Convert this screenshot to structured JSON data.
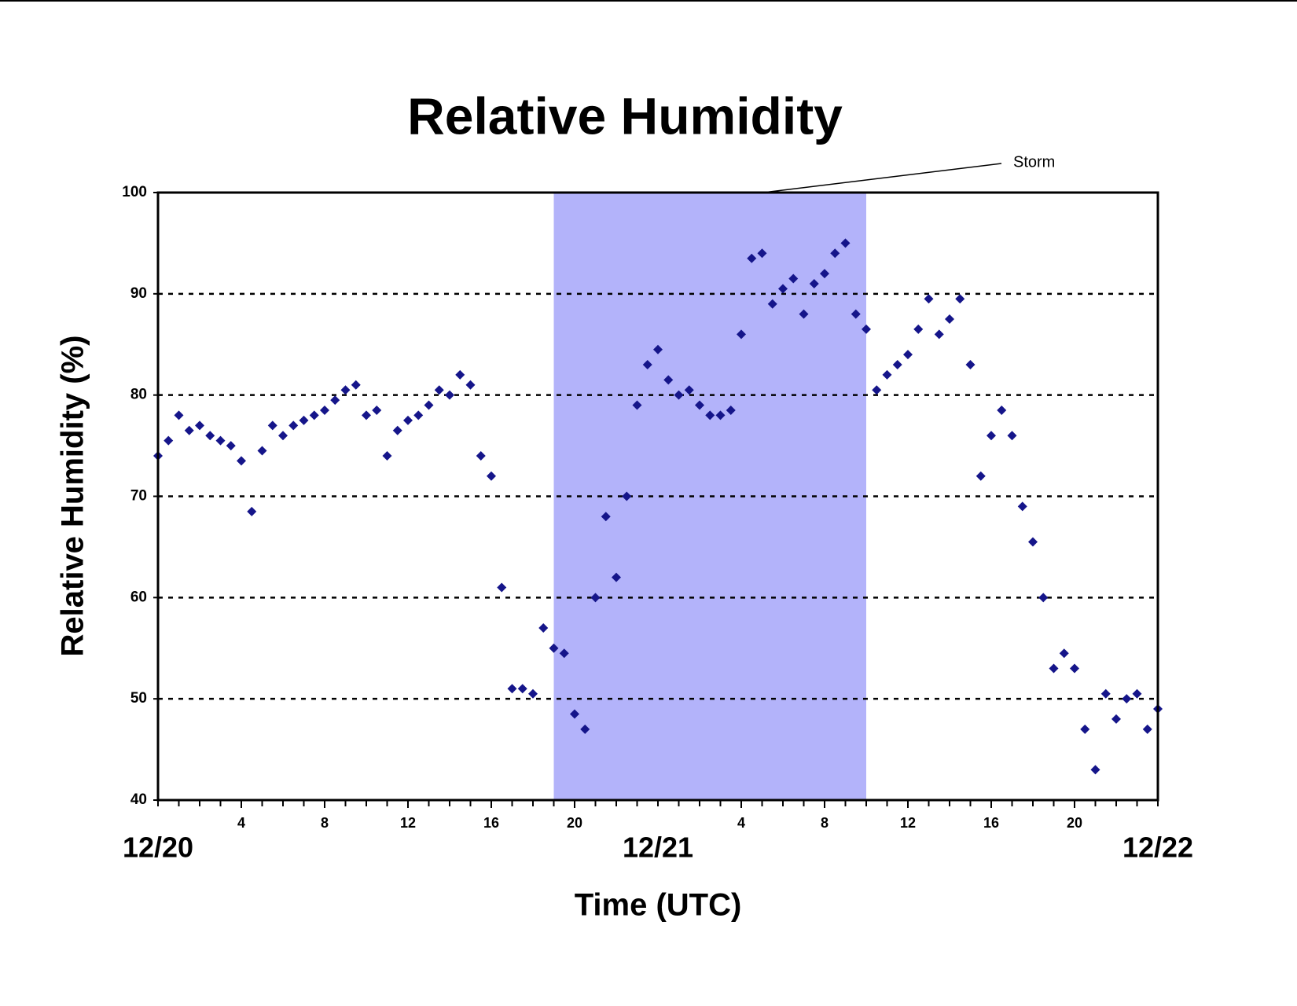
{
  "chart_data": {
    "type": "scatter",
    "title": "Relative Humidity",
    "x_label": "Time (UTC)",
    "y_label": "Relative Humidity (%)",
    "xlim": [
      0,
      48
    ],
    "ylim": [
      40,
      100
    ],
    "yticks": [
      40,
      50,
      60,
      70,
      80,
      90,
      100
    ],
    "xticks": [
      4,
      8,
      12,
      16,
      20,
      {
        "value": 28,
        "label": "4"
      },
      {
        "value": 32,
        "label": "8"
      },
      {
        "value": 36,
        "label": "12"
      },
      {
        "value": 40,
        "label": "16"
      },
      {
        "value": 44,
        "label": "20"
      }
    ],
    "date_ticks": [
      {
        "value": 0,
        "label": "12/20"
      },
      {
        "value": 24,
        "label": "12/21"
      },
      {
        "value": 48,
        "label": "12/22"
      }
    ],
    "xminorticks": [
      0,
      1,
      2,
      3,
      4,
      5,
      6,
      7,
      8,
      9,
      10,
      11,
      12,
      13,
      14,
      15,
      16,
      17,
      18,
      19,
      20,
      21,
      22,
      23,
      24,
      25,
      26,
      27,
      28,
      29,
      30,
      31,
      32,
      33,
      34,
      35,
      36,
      37,
      38,
      39,
      40,
      41,
      42,
      43,
      44,
      45,
      46,
      47,
      48
    ],
    "grid": true,
    "annotation": {
      "text": "Storm",
      "span": [
        19,
        34
      ],
      "color": "#b3b3fa"
    },
    "series": [
      {
        "color": "#15158a",
        "x": [
          0,
          0.5,
          1,
          1.5,
          2,
          2.5,
          3,
          3.5,
          4,
          4.5,
          5,
          5.5,
          6,
          6.5,
          7,
          7.5,
          8,
          8.5,
          9,
          9.5,
          10,
          10.5,
          11,
          11.5,
          12,
          12.5,
          13,
          13.5,
          14,
          14.5,
          15,
          15.5,
          16,
          16.5,
          17,
          17.5,
          18,
          18.5,
          19,
          19.5,
          20,
          20.5,
          21,
          21.5,
          22,
          22.5,
          23,
          23.5,
          24,
          24.5,
          25,
          25.5,
          26,
          26.5,
          27,
          27.5,
          28,
          28.5,
          29,
          29.5,
          30,
          30.5,
          31,
          31.5,
          32,
          32.5,
          33,
          33.5,
          34,
          34.5,
          35,
          35.5,
          36,
          36.5,
          37,
          37.5,
          38,
          38.5,
          39,
          39.5,
          40,
          40.5,
          41,
          41.5,
          42,
          42.5,
          43,
          43.5,
          44,
          44.5,
          45,
          45.5,
          46,
          46.5,
          47,
          47.5,
          48
        ],
        "values": [
          74,
          75.5,
          78,
          76.5,
          77,
          76,
          75.5,
          75,
          73.5,
          68.5,
          74.5,
          77,
          76,
          77,
          77.5,
          78,
          78.5,
          79.5,
          80.5,
          81,
          78,
          78.5,
          74,
          76.5,
          77.5,
          78,
          79,
          80.5,
          80,
          82,
          81,
          74,
          72,
          61,
          51,
          51,
          50.5,
          57,
          55,
          54.5,
          48.5,
          47,
          60,
          68,
          62,
          70,
          79,
          83,
          84.5,
          81.5,
          80,
          80.5,
          79,
          78,
          78,
          78.5,
          86,
          93.5,
          94,
          89,
          90.5,
          91.5,
          88,
          91,
          92,
          94,
          95,
          88,
          86.5,
          80.5,
          82,
          83,
          84,
          86.5,
          89.5,
          86,
          87.5,
          89.5,
          83,
          72,
          76,
          78.5,
          76,
          69,
          65.5,
          60,
          53,
          54.5,
          53,
          47,
          43,
          50.5,
          48,
          50,
          50.5,
          47,
          49
        ]
      }
    ]
  }
}
